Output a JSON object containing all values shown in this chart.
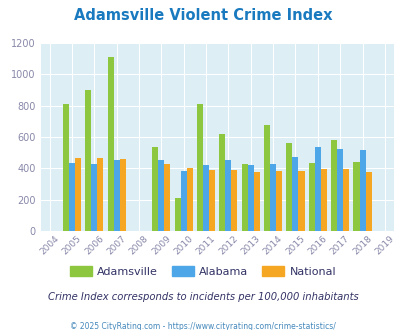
{
  "title": "Adamsville Violent Crime Index",
  "title_color": "#1a7abf",
  "years": [
    2004,
    2005,
    2006,
    2007,
    2008,
    2009,
    2010,
    2011,
    2012,
    2013,
    2014,
    2015,
    2016,
    2017,
    2018,
    2019
  ],
  "adamsville": [
    null,
    810,
    900,
    1110,
    null,
    535,
    210,
    810,
    620,
    425,
    675,
    560,
    435,
    580,
    440,
    null
  ],
  "alabama": [
    null,
    435,
    425,
    450,
    null,
    450,
    385,
    420,
    450,
    420,
    425,
    470,
    535,
    525,
    515,
    null
  ],
  "national": [
    null,
    465,
    465,
    460,
    null,
    430,
    400,
    390,
    390,
    375,
    380,
    385,
    395,
    395,
    375,
    null
  ],
  "bar_colors": {
    "adamsville": "#8dc63f",
    "alabama": "#4da6e8",
    "national": "#f5a623"
  },
  "plot_bg": "#ddeef5",
  "ylim": [
    0,
    1200
  ],
  "yticks": [
    0,
    200,
    400,
    600,
    800,
    1000,
    1200
  ],
  "bar_width": 0.27,
  "grid_color": "#ffffff",
  "subtitle": "Crime Index corresponds to incidents per 100,000 inhabitants",
  "footer": "© 2025 CityRating.com - https://www.cityrating.com/crime-statistics/",
  "legend_labels": [
    "Adamsville",
    "Alabama",
    "National"
  ],
  "tick_label_color": "#8888aa",
  "subtitle_color": "#333366",
  "footer_color": "#4488bb"
}
